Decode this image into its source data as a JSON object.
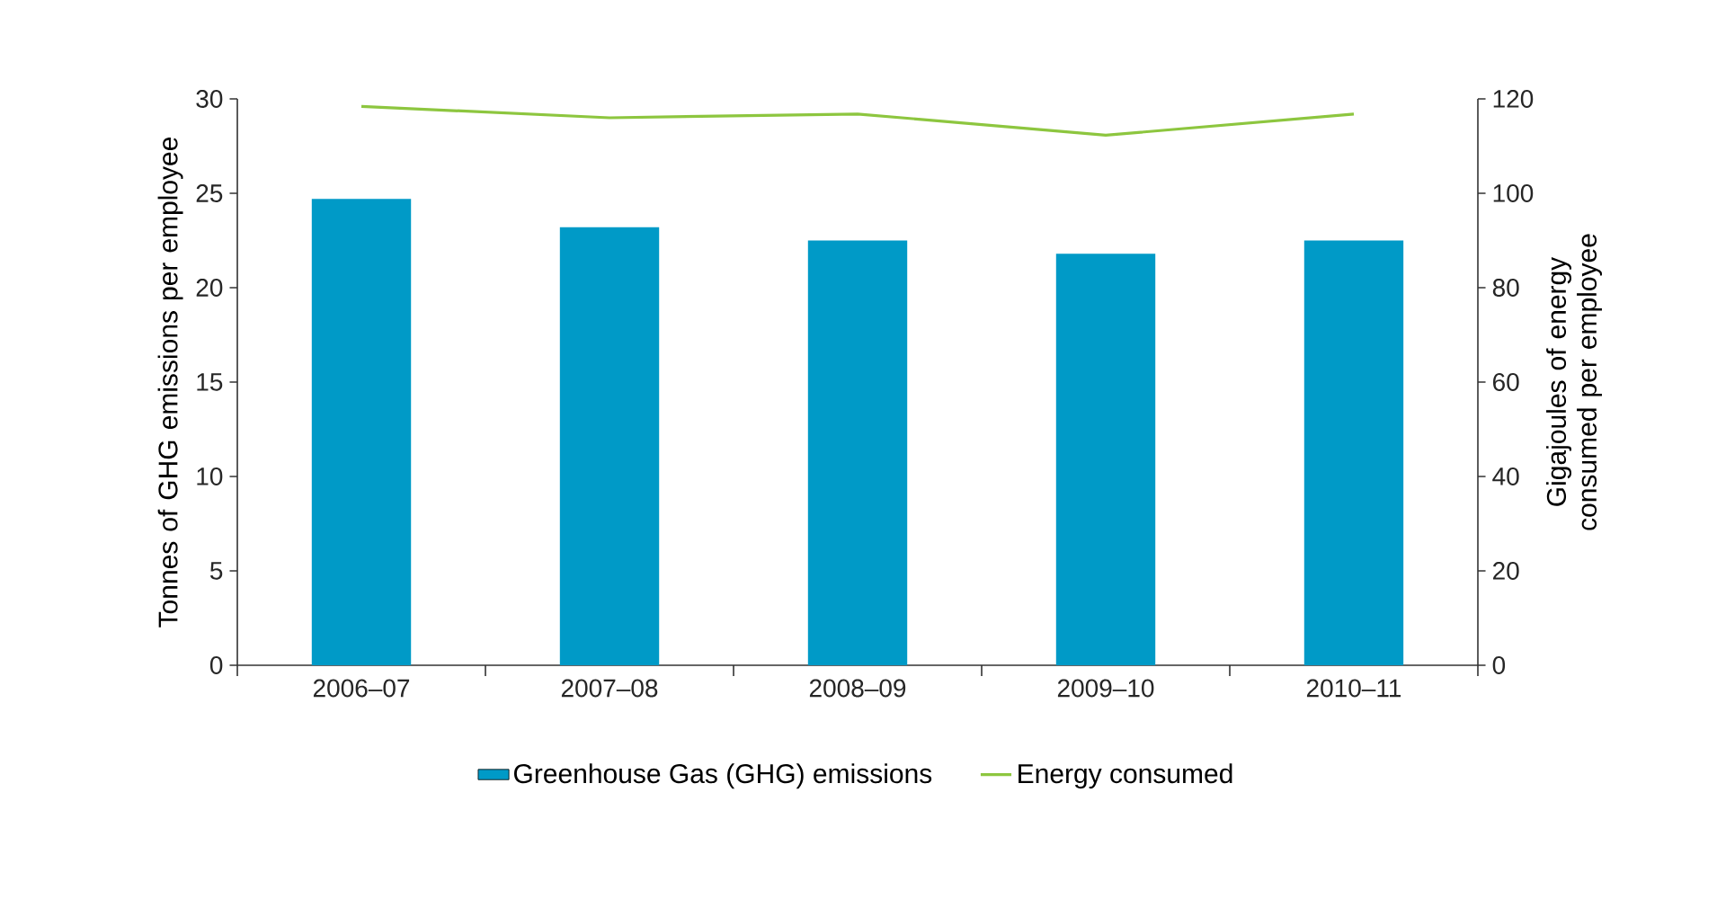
{
  "chart_data": {
    "type": "bar",
    "ylabel": "Tonnes of GHG emissions per employee",
    "y2label": "Gigajoules of energy consumed per employee",
    "categories": [
      "2006–07",
      "2007–08",
      "2008–09",
      "2009–10",
      "2010–11"
    ],
    "series": [
      {
        "name": "Greenhouse Gas (GHG) emissions",
        "color": "#009ac7",
        "values": [
          24.7,
          23.2,
          22.5,
          21.8,
          22.5
        ]
      },
      {
        "name": "Energy consumed",
        "type": "line",
        "axis": "y2",
        "color": "#8dc63f",
        "values": [
          118.4,
          116.0,
          116.8,
          112.3,
          116.8
        ]
      }
    ],
    "ylim": [
      0,
      30
    ],
    "yticks": [
      0,
      5,
      10,
      15,
      20,
      25,
      30
    ],
    "y2lim": [
      0,
      120
    ],
    "y2ticks": [
      0,
      20,
      40,
      60,
      80,
      100,
      120
    ],
    "grid": false,
    "legend": "bottom",
    "marker": "none",
    "line_style": "solid"
  }
}
